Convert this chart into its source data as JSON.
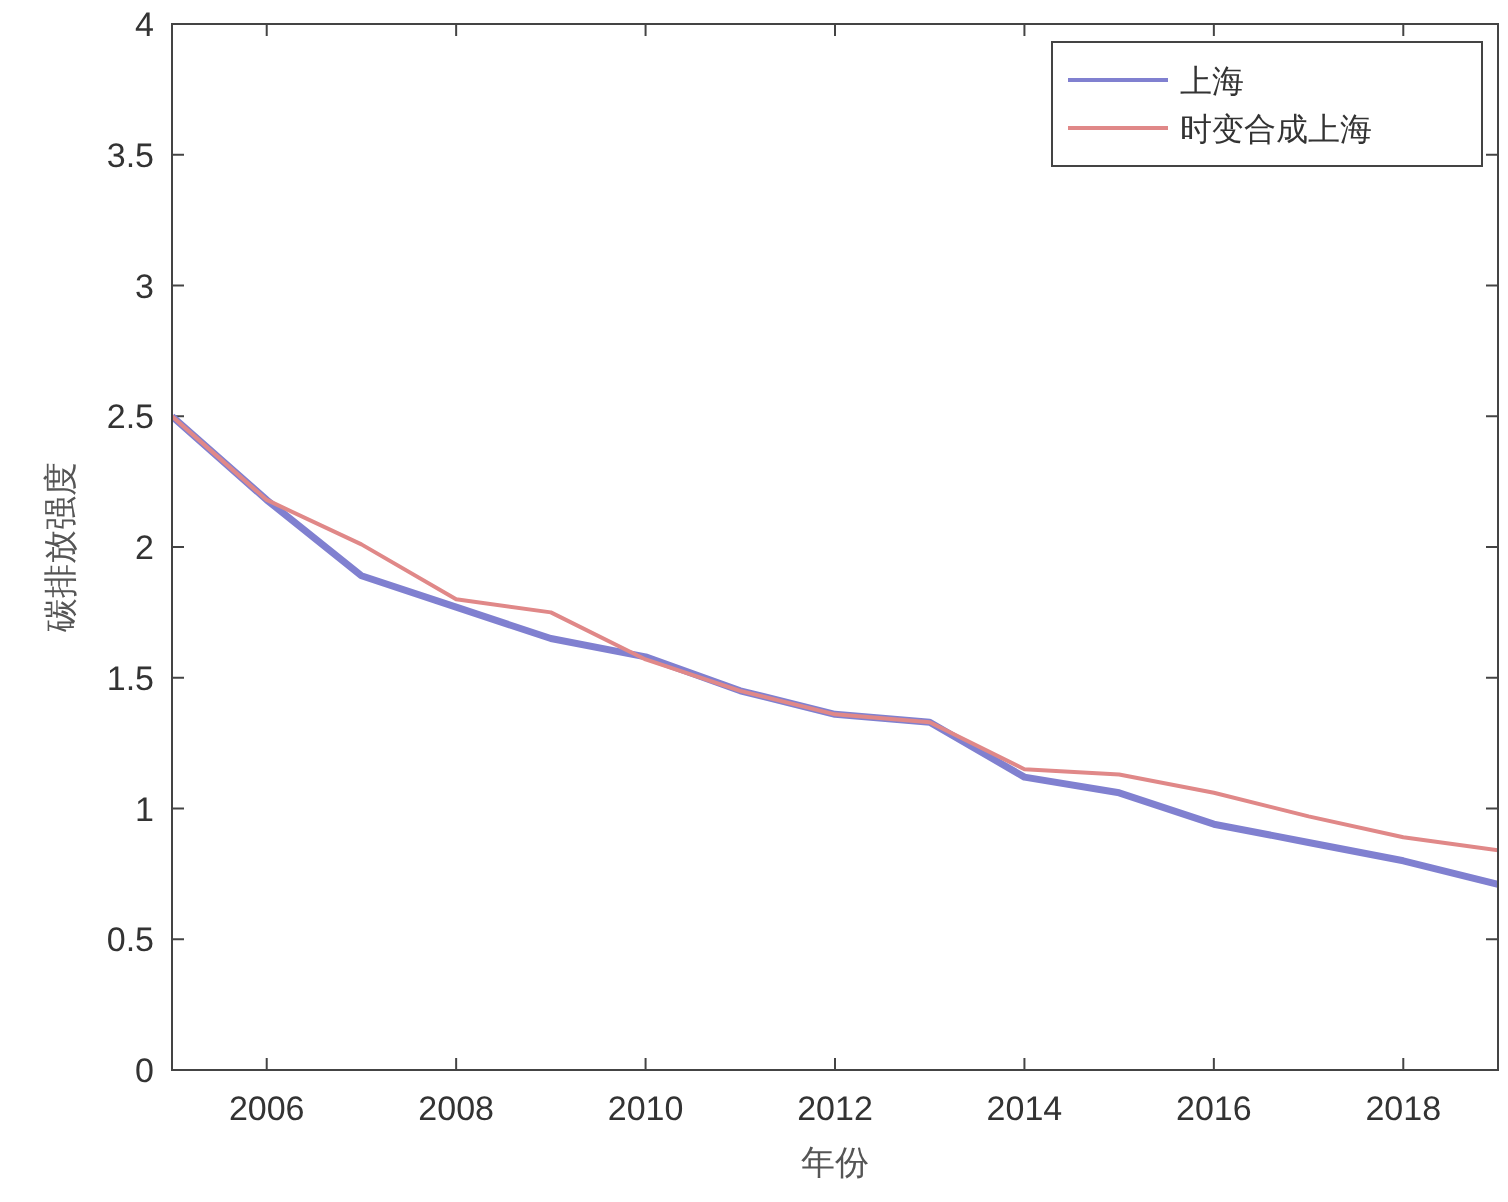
{
  "chart_data": {
    "type": "line",
    "xlabel": "年份",
    "ylabel": "碳排放强度",
    "x": [
      2005,
      2006,
      2007,
      2008,
      2009,
      2010,
      2011,
      2012,
      2013,
      2014,
      2015,
      2016,
      2017,
      2018,
      2019
    ],
    "series": [
      {
        "name": "上海",
        "color": "#8080d0",
        "values": [
          2.5,
          2.18,
          1.89,
          1.77,
          1.65,
          1.58,
          1.45,
          1.36,
          1.33,
          1.12,
          1.06,
          0.94,
          0.87,
          0.8,
          0.71
        ]
      },
      {
        "name": "时变合成上海",
        "color": "#e08888",
        "values": [
          2.5,
          2.18,
          2.01,
          1.8,
          1.75,
          1.57,
          1.45,
          1.36,
          1.33,
          1.15,
          1.13,
          1.06,
          0.97,
          0.89,
          0.84
        ]
      }
    ],
    "xlim": [
      2005,
      2019
    ],
    "xticks": [
      2006,
      2008,
      2010,
      2012,
      2014,
      2016,
      2018
    ],
    "ylim": [
      0,
      4
    ],
    "yticks": [
      0,
      0.5,
      1,
      1.5,
      2,
      2.5,
      3,
      3.5,
      4
    ],
    "grid": false,
    "legend": "top right"
  }
}
